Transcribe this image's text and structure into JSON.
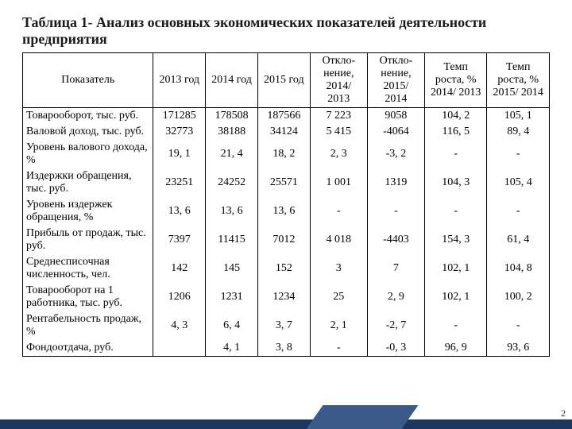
{
  "title": "Таблица 1- Анализ основных экономических показателей деятельности предприятия",
  "headers": [
    "Показатель",
    "2013 год",
    "2014 год",
    "2015 год",
    "Откло-нение, 2014/ 2013",
    "Откло-нение, 2015/ 2014",
    "Темп роста, % 2014/ 2013",
    "Темп роста, % 2015/ 2014"
  ],
  "rows": [
    [
      "Товарооборот, тыс. руб.",
      "171285",
      "178508",
      "187566",
      "7 223",
      "9058",
      "104, 2",
      "105, 1"
    ],
    [
      "Валовой доход, тыс. руб.",
      "32773",
      "38188",
      "34124",
      "5 415",
      "-4064",
      "116, 5",
      "89, 4"
    ],
    [
      "Уровень валового дохода, %",
      "19, 1",
      "21, 4",
      "18, 2",
      "2, 3",
      "-3, 2",
      "-",
      "-"
    ],
    [
      "Издержки обращения, тыс. руб.",
      "23251",
      "24252",
      "25571",
      "1 001",
      "1319",
      "104, 3",
      "105, 4"
    ],
    [
      "Уровень издержек обращения, %",
      "13, 6",
      "13, 6",
      "13, 6",
      "-",
      "-",
      "-",
      "-"
    ],
    [
      "Прибыль от продаж, тыс. руб.",
      "7397",
      "11415",
      "7012",
      "4 018",
      "-4403",
      "154, 3",
      "61, 4"
    ],
    [
      "Среднесписочная численность, чел.",
      "142",
      "145",
      "152",
      "3",
      "7",
      "102, 1",
      "104, 8"
    ],
    [
      "Товарооборот на 1 работника, тыс. руб.",
      "1206",
      "1231",
      "1234",
      "25",
      "2, 9",
      "102, 1",
      "100, 2"
    ],
    [
      "Рентабельность продаж, %",
      "4, 3",
      "6, 4",
      "3, 7",
      "2, 1",
      "-2, 7",
      "-",
      "-"
    ],
    [
      "Фондоотдача, руб.",
      "",
      "4, 1",
      "3, 8",
      "-",
      "-0, 3",
      "96, 9",
      "93, 6"
    ]
  ],
  "page_number": "2",
  "col_widths": [
    "146px",
    "62px",
    "62px",
    "62px",
    "68px",
    "68px",
    "74px",
    "74px"
  ]
}
